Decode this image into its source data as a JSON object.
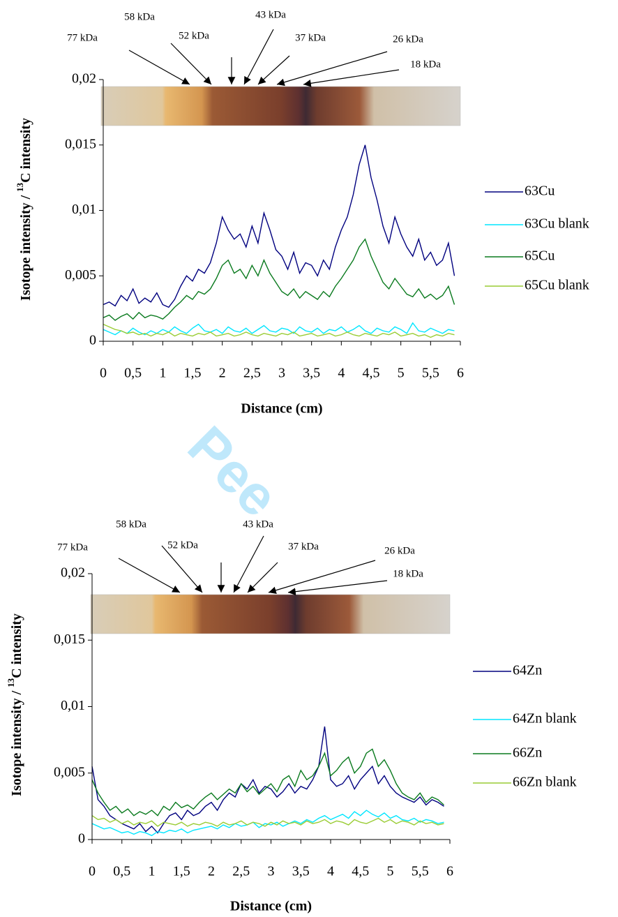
{
  "watermark": "Pee",
  "chart_data": [
    {
      "type": "line",
      "x_label": "Distance (cm)",
      "y_label_parts": [
        "Isotope intensity / ",
        "13",
        "C intensity"
      ],
      "annotations": [
        "77 kDa",
        "58 kDa",
        "52 kDa",
        "43 kDa",
        "37 kDa",
        "26 kDa",
        "18 kDa"
      ],
      "xlim": [
        0,
        6
      ],
      "ylim": [
        0,
        0.02
      ],
      "xticks": [
        0,
        {
          "value": 0.5,
          "label": "0,5"
        },
        1,
        {
          "value": 1.5,
          "label": "1,5"
        },
        2,
        {
          "value": 2.5,
          "label": "2,5"
        },
        3,
        {
          "value": 3.5,
          "label": "3,5"
        },
        4,
        {
          "value": 4.5,
          "label": "4,5"
        },
        5,
        {
          "value": 5.5,
          "label": "5,5"
        },
        6
      ],
      "yticks": [
        0,
        {
          "value": 0.005,
          "label": "0,005"
        },
        {
          "value": 0.01,
          "label": "0,01"
        },
        {
          "value": 0.015,
          "label": "0,015"
        },
        {
          "value": 0.02,
          "label": "0,02"
        }
      ],
      "grid": false,
      "legend": "right",
      "x": [
        0,
        0.1,
        0.2,
        0.3,
        0.4,
        0.5,
        0.6,
        0.7,
        0.8,
        0.9,
        1,
        1.1,
        1.2,
        1.3,
        1.4,
        1.5,
        1.6,
        1.7,
        1.8,
        1.9,
        2,
        2.1,
        2.2,
        2.3,
        2.4,
        2.5,
        2.6,
        2.7,
        2.8,
        2.9,
        3,
        3.1,
        3.2,
        3.3,
        3.4,
        3.5,
        3.6,
        3.7,
        3.8,
        3.9,
        4,
        4.1,
        4.2,
        4.3,
        4.4,
        4.5,
        4.6,
        4.7,
        4.8,
        4.9,
        5,
        5.1,
        5.2,
        5.3,
        5.4,
        5.5,
        5.6,
        5.7,
        5.8,
        5.9
      ],
      "series": [
        {
          "name": "63Cu",
          "color": "#00007f",
          "values": [
            0.0028,
            0.003,
            0.0027,
            0.0035,
            0.0031,
            0.004,
            0.0029,
            0.0033,
            0.003,
            0.0037,
            0.0028,
            0.0026,
            0.0032,
            0.0042,
            0.005,
            0.0046,
            0.0055,
            0.0052,
            0.006,
            0.0075,
            0.0095,
            0.0085,
            0.0078,
            0.0082,
            0.0072,
            0.0088,
            0.0075,
            0.0098,
            0.0085,
            0.007,
            0.0065,
            0.0055,
            0.0068,
            0.0052,
            0.006,
            0.0058,
            0.005,
            0.0062,
            0.0055,
            0.0072,
            0.0085,
            0.0095,
            0.0112,
            0.0135,
            0.015,
            0.0125,
            0.0108,
            0.0088,
            0.0075,
            0.0095,
            0.0082,
            0.0072,
            0.0065,
            0.0078,
            0.0062,
            0.0068,
            0.0058,
            0.0062,
            0.0075,
            0.005
          ]
        },
        {
          "name": "63Cu blank",
          "color": "#00e6ff",
          "values": [
            0.0009,
            0.0007,
            0.0005,
            0.0008,
            0.0006,
            0.001,
            0.0007,
            0.0005,
            0.0008,
            0.0006,
            0.0009,
            0.0007,
            0.0011,
            0.0008,
            0.0006,
            0.001,
            0.0013,
            0.0008,
            0.0007,
            0.0009,
            0.0006,
            0.0011,
            0.0008,
            0.0007,
            0.001,
            0.0006,
            0.0009,
            0.0012,
            0.0008,
            0.0007,
            0.001,
            0.0009,
            0.0006,
            0.0011,
            0.0008,
            0.0007,
            0.001,
            0.0006,
            0.0009,
            0.0008,
            0.0011,
            0.0007,
            0.0009,
            0.0012,
            0.0008,
            0.0006,
            0.001,
            0.0008,
            0.0007,
            0.0011,
            0.0009,
            0.0006,
            0.0014,
            0.0008,
            0.0007,
            0.001,
            0.0008,
            0.0006,
            0.0009,
            0.0008
          ]
        },
        {
          "name": "65Cu",
          "color": "#0a7a1e",
          "values": [
            0.0018,
            0.002,
            0.0016,
            0.0019,
            0.0021,
            0.0017,
            0.0022,
            0.0018,
            0.002,
            0.0019,
            0.0017,
            0.0021,
            0.0026,
            0.003,
            0.0035,
            0.0032,
            0.0038,
            0.0036,
            0.004,
            0.0048,
            0.0058,
            0.0062,
            0.0052,
            0.0055,
            0.0048,
            0.0058,
            0.005,
            0.0062,
            0.0052,
            0.0045,
            0.0038,
            0.0035,
            0.004,
            0.0033,
            0.0038,
            0.0035,
            0.0032,
            0.0038,
            0.0034,
            0.0042,
            0.0048,
            0.0055,
            0.0062,
            0.0072,
            0.0078,
            0.0065,
            0.0055,
            0.0045,
            0.004,
            0.0048,
            0.0042,
            0.0036,
            0.0034,
            0.004,
            0.0033,
            0.0036,
            0.0032,
            0.0035,
            0.0042,
            0.0028
          ]
        },
        {
          "name": "65Cu blank",
          "color": "#99cc33",
          "values": [
            0.0013,
            0.0011,
            0.0009,
            0.0008,
            0.0006,
            0.0007,
            0.0005,
            0.0006,
            0.0004,
            0.0006,
            0.0005,
            0.0007,
            0.0004,
            0.0006,
            0.0005,
            0.0004,
            0.0006,
            0.0005,
            0.0007,
            0.0004,
            0.0005,
            0.0006,
            0.0004,
            0.0005,
            0.0007,
            0.0005,
            0.0004,
            0.0006,
            0.0005,
            0.0004,
            0.0006,
            0.0005,
            0.0007,
            0.0004,
            0.0005,
            0.0006,
            0.0004,
            0.0005,
            0.0006,
            0.0004,
            0.0005,
            0.0007,
            0.0005,
            0.0004,
            0.0006,
            0.0005,
            0.0004,
            0.0006,
            0.0005,
            0.0007,
            0.0004,
            0.0005,
            0.0006,
            0.0004,
            0.0005,
            0.0003,
            0.0005,
            0.0004,
            0.0006,
            0.0005
          ]
        }
      ]
    },
    {
      "type": "line",
      "x_label": "Distance (cm)",
      "y_label_parts": [
        "Isotope intensity / ",
        "13",
        "C intensity"
      ],
      "annotations": [
        "77 kDa",
        "58 kDa",
        "52 kDa",
        "43 kDa",
        "37 kDa",
        "26 kDa",
        "18 kDa"
      ],
      "xlim": [
        0,
        6
      ],
      "ylim": [
        0,
        0.02
      ],
      "xticks": [
        0,
        {
          "value": 0.5,
          "label": "0,5"
        },
        1,
        {
          "value": 1.5,
          "label": "1,5"
        },
        2,
        {
          "value": 2.5,
          "label": "2,5"
        },
        3,
        {
          "value": 3.5,
          "label": "3,5"
        },
        4,
        {
          "value": 4.5,
          "label": "4,5"
        },
        5,
        {
          "value": 5.5,
          "label": "5,5"
        },
        6
      ],
      "yticks": [
        0,
        {
          "value": 0.005,
          "label": "0,005"
        },
        {
          "value": 0.01,
          "label": "0,01"
        },
        {
          "value": 0.015,
          "label": "0,015"
        },
        {
          "value": 0.02,
          "label": "0,02"
        }
      ],
      "grid": false,
      "legend": "right",
      "x": [
        0,
        0.1,
        0.2,
        0.3,
        0.4,
        0.5,
        0.6,
        0.7,
        0.8,
        0.9,
        1,
        1.1,
        1.2,
        1.3,
        1.4,
        1.5,
        1.6,
        1.7,
        1.8,
        1.9,
        2,
        2.1,
        2.2,
        2.3,
        2.4,
        2.5,
        2.6,
        2.7,
        2.8,
        2.9,
        3,
        3.1,
        3.2,
        3.3,
        3.4,
        3.5,
        3.6,
        3.7,
        3.8,
        3.9,
        4,
        4.1,
        4.2,
        4.3,
        4.4,
        4.5,
        4.6,
        4.7,
        4.8,
        4.9,
        5,
        5.1,
        5.2,
        5.3,
        5.4,
        5.5,
        5.6,
        5.7,
        5.8,
        5.9
      ],
      "series": [
        {
          "name": "64Zn",
          "color": "#00007f",
          "values": [
            0.0055,
            0.003,
            0.0025,
            0.0018,
            0.0015,
            0.0012,
            0.001,
            0.0008,
            0.0012,
            0.0006,
            0.001,
            0.0005,
            0.0012,
            0.0018,
            0.002,
            0.0015,
            0.0022,
            0.0018,
            0.002,
            0.0025,
            0.0028,
            0.0022,
            0.003,
            0.0035,
            0.0032,
            0.0042,
            0.0038,
            0.0045,
            0.0035,
            0.004,
            0.0038,
            0.0032,
            0.0036,
            0.0042,
            0.0035,
            0.004,
            0.0038,
            0.0045,
            0.0055,
            0.0085,
            0.0045,
            0.004,
            0.0042,
            0.0048,
            0.0038,
            0.0045,
            0.005,
            0.0055,
            0.0042,
            0.0048,
            0.004,
            0.0035,
            0.0032,
            0.003,
            0.0028,
            0.0032,
            0.0026,
            0.003,
            0.0028,
            0.0025
          ]
        },
        {
          "name": "64Zn blank",
          "color": "#00e6ff",
          "values": [
            0.0012,
            0.001,
            0.0008,
            0.0009,
            0.0007,
            0.0005,
            0.0006,
            0.0004,
            0.0006,
            0.0005,
            0.0003,
            0.0006,
            0.0005,
            0.0007,
            0.0006,
            0.0008,
            0.0005,
            0.0007,
            0.0008,
            0.0009,
            0.001,
            0.0008,
            0.0011,
            0.0009,
            0.0012,
            0.001,
            0.0011,
            0.0013,
            0.0009,
            0.0012,
            0.0011,
            0.0013,
            0.001,
            0.0012,
            0.0014,
            0.0012,
            0.0015,
            0.0013,
            0.0016,
            0.0018,
            0.0015,
            0.0017,
            0.0019,
            0.0016,
            0.0021,
            0.0018,
            0.0022,
            0.0019,
            0.0017,
            0.002,
            0.0016,
            0.0018,
            0.0015,
            0.0014,
            0.0016,
            0.0013,
            0.0015,
            0.0014,
            0.0012,
            0.0013
          ]
        },
        {
          "name": "66Zn",
          "color": "#0a7a1e",
          "values": [
            0.0045,
            0.0035,
            0.0028,
            0.0022,
            0.0025,
            0.002,
            0.0023,
            0.0018,
            0.0021,
            0.0019,
            0.0022,
            0.0018,
            0.0025,
            0.0022,
            0.0028,
            0.0024,
            0.0026,
            0.0023,
            0.0028,
            0.0032,
            0.0035,
            0.003,
            0.0034,
            0.0038,
            0.0035,
            0.0042,
            0.0036,
            0.004,
            0.0034,
            0.0038,
            0.0042,
            0.0036,
            0.0045,
            0.0048,
            0.004,
            0.0052,
            0.0045,
            0.0048,
            0.0055,
            0.0065,
            0.0048,
            0.0052,
            0.0058,
            0.0062,
            0.005,
            0.0055,
            0.0065,
            0.0068,
            0.0055,
            0.006,
            0.0052,
            0.0042,
            0.0035,
            0.0032,
            0.003,
            0.0035,
            0.0028,
            0.0032,
            0.003,
            0.0026
          ]
        },
        {
          "name": "66Zn blank",
          "color": "#99cc33",
          "values": [
            0.0018,
            0.0015,
            0.0016,
            0.0013,
            0.0015,
            0.0012,
            0.0014,
            0.0011,
            0.0013,
            0.0012,
            0.0014,
            0.001,
            0.0013,
            0.0012,
            0.0011,
            0.0013,
            0.001,
            0.0012,
            0.0011,
            0.0013,
            0.0012,
            0.001,
            0.0013,
            0.0011,
            0.0012,
            0.0014,
            0.0011,
            0.0013,
            0.0012,
            0.001,
            0.0013,
            0.0011,
            0.0014,
            0.0012,
            0.0013,
            0.0011,
            0.0014,
            0.0012,
            0.0013,
            0.0015,
            0.0012,
            0.0014,
            0.0013,
            0.0011,
            0.0015,
            0.0013,
            0.0012,
            0.0014,
            0.0016,
            0.0013,
            0.0015,
            0.0012,
            0.0014,
            0.0013,
            0.0011,
            0.0014,
            0.0012,
            0.0013,
            0.0011,
            0.0012
          ]
        }
      ]
    }
  ]
}
